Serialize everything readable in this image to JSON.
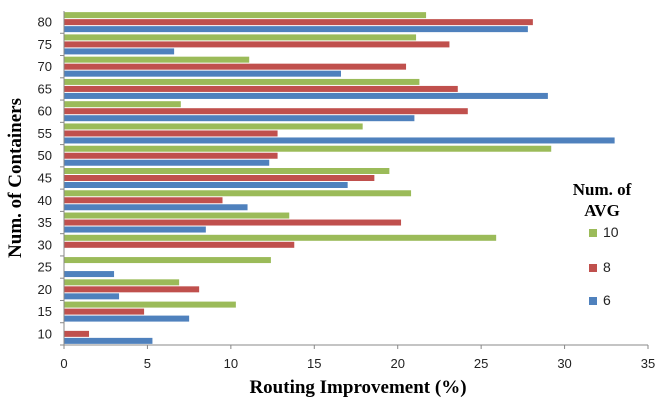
{
  "chart_data": {
    "type": "bar",
    "orientation": "horizontal",
    "categories": [
      "10",
      "15",
      "20",
      "25",
      "30",
      "35",
      "40",
      "45",
      "50",
      "55",
      "60",
      "65",
      "70",
      "75",
      "80"
    ],
    "series": [
      {
        "name": "6",
        "color": "#4F81BD",
        "values": [
          5.3,
          7.5,
          3.3,
          3.0,
          0,
          8.5,
          11.0,
          17.0,
          12.3,
          33.0,
          21.0,
          29.0,
          16.6,
          6.6,
          27.8
        ]
      },
      {
        "name": "8",
        "color": "#C0504D",
        "values": [
          1.5,
          4.8,
          8.1,
          0,
          13.8,
          20.2,
          9.5,
          18.6,
          12.8,
          12.8,
          24.2,
          23.6,
          20.5,
          23.1,
          28.1
        ]
      },
      {
        "name": "10",
        "color": "#9BBB59",
        "values": [
          0,
          10.3,
          6.9,
          12.4,
          25.9,
          13.5,
          20.8,
          19.5,
          29.2,
          17.9,
          7.0,
          21.3,
          11.1,
          21.1,
          21.7
        ]
      }
    ],
    "xlabel": "Routing Improvement (%)",
    "ylabel": "Num. of Containers",
    "xlim": [
      0,
      35
    ],
    "xticks": [
      "0",
      "5",
      "10",
      "15",
      "20",
      "25",
      "30",
      "35"
    ],
    "legend": {
      "title_line1": "Num. of",
      "title_line2": "AVG",
      "placement": "right",
      "order": [
        "10",
        "8",
        "6"
      ]
    },
    "grid": false
  }
}
